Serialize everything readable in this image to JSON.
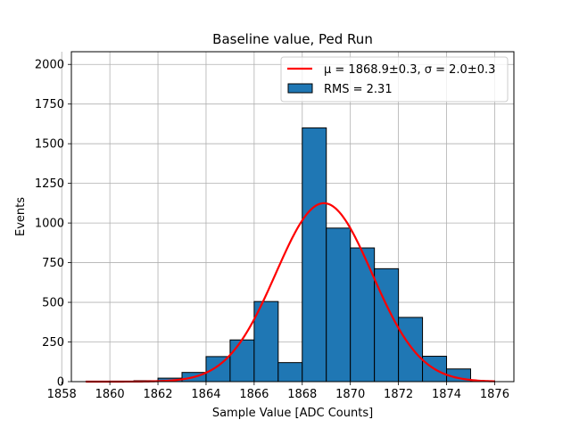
{
  "chart_data": {
    "type": "bar",
    "title": "Baseline value, Ped Run",
    "xlabel": "Sample Value [ADC Counts]",
    "ylabel": "Events",
    "xlim": [
      1858.4,
      1876.8
    ],
    "ylim": [
      0,
      2080
    ],
    "xticks": [
      1858,
      1860,
      1862,
      1864,
      1866,
      1868,
      1870,
      1872,
      1874,
      1876
    ],
    "yticks": [
      0,
      250,
      500,
      750,
      1000,
      1250,
      1500,
      1750,
      2000
    ],
    "grid": true,
    "legend_position": "top-right",
    "histogram": {
      "name": "RMS = 2.31",
      "color": "#1f77b4",
      "edge_color": "#000000",
      "bin_edges": [
        1859.0,
        1860.0,
        1861.0,
        1862.0,
        1863.0,
        1864.0,
        1865.0,
        1866.0,
        1867.0,
        1868.0,
        1869.0,
        1870.0,
        1871.0,
        1872.0,
        1873.0,
        1874.0,
        1875.0,
        1876.0
      ],
      "counts": [
        1,
        3,
        6,
        22,
        58,
        158,
        263,
        505,
        120,
        1600,
        968,
        843,
        712,
        405,
        160,
        80,
        5
      ]
    },
    "fit": {
      "name": "μ = 1868.9±0.3, σ = 2.0±0.3",
      "color": "#ff0000",
      "mu": 1868.9,
      "sigma": 2.0,
      "amplitude": 1125,
      "x_range": [
        1859.0,
        1876.0
      ]
    }
  }
}
